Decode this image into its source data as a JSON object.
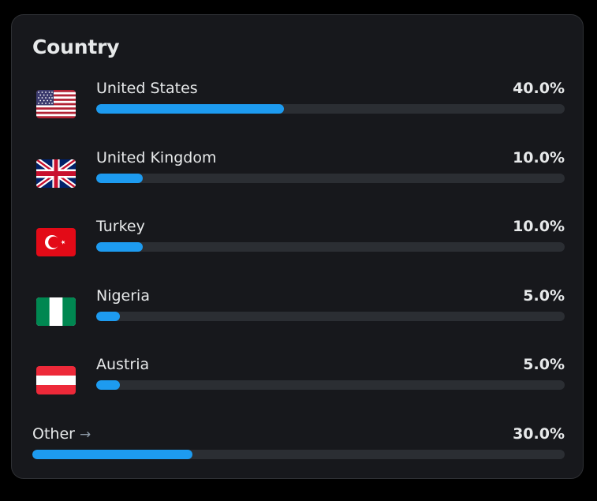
{
  "card": {
    "title": "Country"
  },
  "countries": [
    {
      "name": "United States",
      "percent_label": "40.0%",
      "percent": 40.0,
      "flag_icon": "flag-us-icon"
    },
    {
      "name": "United Kingdom",
      "percent_label": "10.0%",
      "percent": 10.0,
      "flag_icon": "flag-uk-icon"
    },
    {
      "name": "Turkey",
      "percent_label": "10.0%",
      "percent": 10.0,
      "flag_icon": "flag-tr-icon"
    },
    {
      "name": "Nigeria",
      "percent_label": "5.0%",
      "percent": 5.0,
      "flag_icon": "flag-ng-icon"
    },
    {
      "name": "Austria",
      "percent_label": "5.0%",
      "percent": 5.0,
      "flag_icon": "flag-at-icon"
    }
  ],
  "other": {
    "label": "Other",
    "arrow": "→",
    "percent_label": "30.0%",
    "percent": 30.0
  },
  "colors": {
    "bar_fill": "#1d9bf0",
    "bar_track": "#2b2e33",
    "card_bg": "#17181c",
    "text": "#e7e9ea"
  }
}
